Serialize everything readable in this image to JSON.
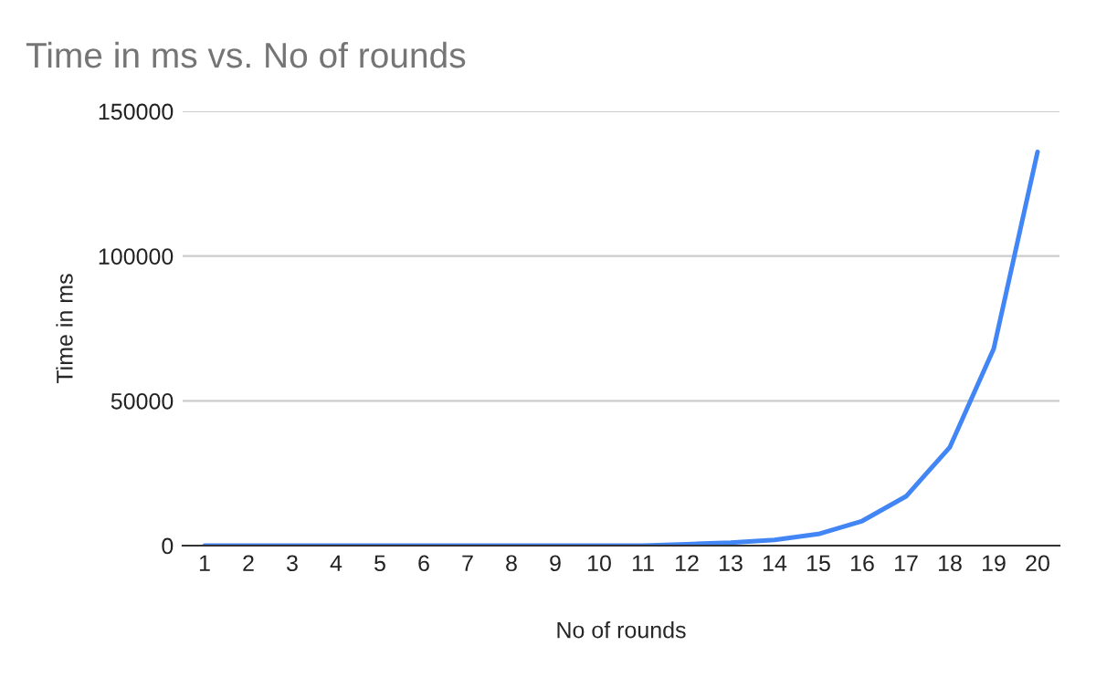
{
  "chart_data": {
    "type": "line",
    "title": "Time in ms vs. No of rounds",
    "xlabel": "No of rounds",
    "ylabel": "Time in ms",
    "categories": [
      "1",
      "2",
      "3",
      "4",
      "5",
      "6",
      "7",
      "8",
      "9",
      "10",
      "11",
      "12",
      "13",
      "14",
      "15",
      "16",
      "17",
      "18",
      "19",
      "20"
    ],
    "series": [
      {
        "color": "#4285f4",
        "values": [
          0,
          0,
          0,
          0,
          0,
          0,
          0,
          0,
          0,
          0,
          0,
          500,
          1000,
          2000,
          4000,
          8500,
          17000,
          34000,
          68000,
          136000
        ]
      }
    ],
    "ylim": [
      0,
      150000
    ],
    "yticks": [
      0,
      50000,
      100000,
      150000
    ],
    "grid": "y",
    "legend": false,
    "marker": "none",
    "line_style": "solid"
  }
}
